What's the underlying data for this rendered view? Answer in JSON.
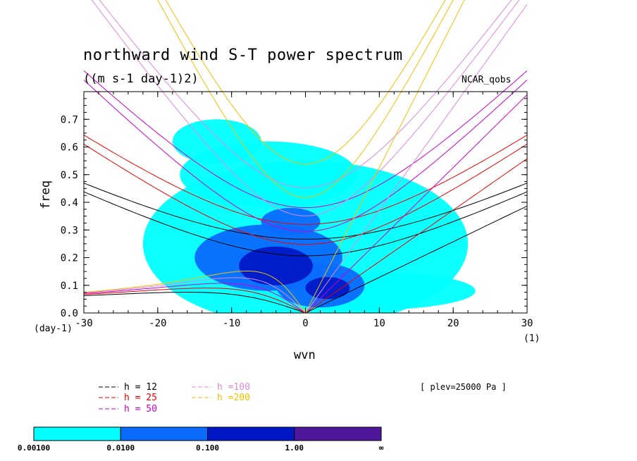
{
  "chart_data": {
    "type": "heatmap",
    "title": "northward wind S-T power spectrum",
    "units": "((m s-1 day-1)2)",
    "dataset": "NCAR_qobs",
    "xlabel": "wvn",
    "ylabel": "freq",
    "x_unit_left": "(day-1)",
    "x_unit_right": "(1)",
    "xlim": [
      -30,
      30
    ],
    "ylim": [
      0,
      0.8
    ],
    "xticks": [
      -30,
      -20,
      -10,
      0,
      10,
      20,
      30
    ],
    "xtick_labels": [
      "-30",
      "-20",
      "-10",
      "0",
      "10",
      "20",
      "30"
    ],
    "yticks": [
      0,
      0.1,
      0.2,
      0.3,
      0.4,
      0.5,
      0.6,
      0.7
    ],
    "ytick_labels": [
      "0.0",
      "0.1",
      "0.2",
      "0.3",
      "0.4",
      "0.5",
      "0.6",
      "0.7"
    ],
    "annotation": "[ plev=25000 Pa ]",
    "colorbar": {
      "bounds": [
        "0.00100",
        "0.0100",
        "0.100",
        "1.00",
        "∞"
      ],
      "colors": [
        "#00ffff",
        "#0a6cff",
        "#0018c8",
        "#50169c"
      ]
    },
    "regions": [
      {
        "level": 0,
        "cx": 0,
        "cy": 0.25,
        "rx": 22,
        "ry": 0.3
      },
      {
        "level": 0,
        "cx": -5,
        "cy": 0.5,
        "rx": 12,
        "ry": 0.12
      },
      {
        "level": 0,
        "cx": 8,
        "cy": 0.08,
        "rx": 15,
        "ry": 0.07
      },
      {
        "level": 0,
        "cx": -12,
        "cy": 0.62,
        "rx": 6,
        "ry": 0.08
      },
      {
        "level": 1,
        "cx": -5,
        "cy": 0.2,
        "rx": 10,
        "ry": 0.12
      },
      {
        "level": 1,
        "cx": 2,
        "cy": 0.1,
        "rx": 6,
        "ry": 0.08
      },
      {
        "level": 1,
        "cx": -2,
        "cy": 0.33,
        "rx": 4,
        "ry": 0.05
      },
      {
        "level": 2,
        "cx": -4,
        "cy": 0.17,
        "rx": 5,
        "ry": 0.07
      },
      {
        "level": 2,
        "cx": 3,
        "cy": 0.09,
        "rx": 3,
        "ry": 0.04
      }
    ],
    "dispersion_curves": [
      {
        "name": "h = 12",
        "color": "#000000",
        "h": 12
      },
      {
        "name": "h = 25",
        "color": "#ee0000",
        "h": 25
      },
      {
        "name": "h = 50",
        "color": "#cc00cc",
        "h": 50
      },
      {
        "name": "h =100",
        "color": "#dd88dd",
        "h": 100
      },
      {
        "name": "h =200",
        "color": "#f0c000",
        "h": 200
      }
    ]
  }
}
